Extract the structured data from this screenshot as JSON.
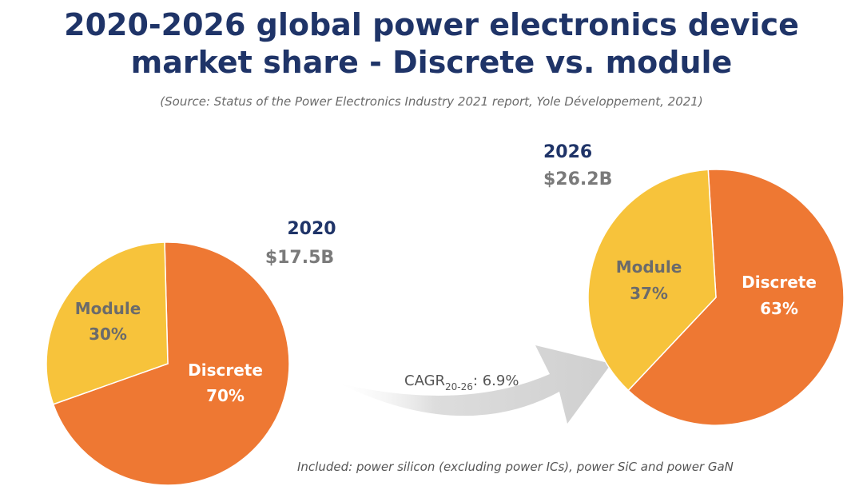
{
  "title_line1": "2020-2026 global power electronics device",
  "title_line2": "market share - Discrete vs. module",
  "subtitle": "(Source: Status of the Power Electronics Industry 2021 report, Yole Développement, 2021)",
  "footnote": "Included: power silicon (excluding power ICs), power SiC and power GaN",
  "cagr": {
    "prefix": "CAGR",
    "subscript": "20-26",
    "suffix": ": 6.9%"
  },
  "colors": {
    "discrete": "#ee7833",
    "module": "#f7c33b",
    "title": "#1f3468",
    "arrow": "#dcdcdc"
  },
  "chart_data": [
    {
      "type": "pie",
      "title": "2020",
      "subtitle": "$17.5B",
      "slices": [
        {
          "name": "Discrete",
          "value": 70,
          "label": "70%",
          "color": "#ee7833"
        },
        {
          "name": "Module",
          "value": 30,
          "label": "30%",
          "color": "#f7c33b"
        }
      ]
    },
    {
      "type": "pie",
      "title": "2026",
      "subtitle": "$26.2B",
      "slices": [
        {
          "name": "Discrete",
          "value": 63,
          "label": "63%",
          "color": "#ee7833"
        },
        {
          "name": "Module",
          "value": 37,
          "label": "37%",
          "color": "#f7c33b"
        }
      ]
    }
  ]
}
